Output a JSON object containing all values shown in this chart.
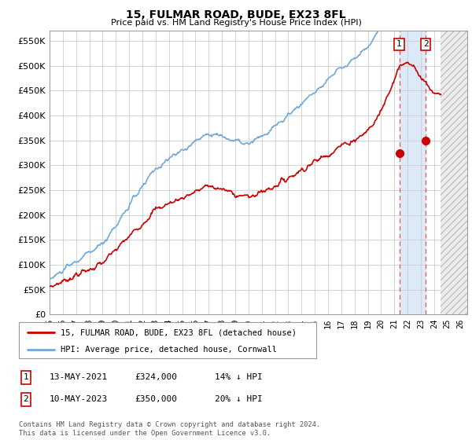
{
  "title": "15, FULMAR ROAD, BUDE, EX23 8FL",
  "subtitle": "Price paid vs. HM Land Registry's House Price Index (HPI)",
  "ylabel_values": [
    "£0",
    "£50K",
    "£100K",
    "£150K",
    "£200K",
    "£250K",
    "£300K",
    "£350K",
    "£400K",
    "£450K",
    "£500K",
    "£550K"
  ],
  "yticks": [
    0,
    50000,
    100000,
    150000,
    200000,
    250000,
    300000,
    350000,
    400000,
    450000,
    500000,
    550000
  ],
  "xlim_start": 1995.0,
  "xlim_end": 2026.5,
  "ylim": [
    0,
    570000
  ],
  "purchase1_date": 2021.37,
  "purchase1_price": 324000,
  "purchase1_label": "1",
  "purchase2_date": 2023.37,
  "purchase2_price": 350000,
  "purchase2_label": "2",
  "legend_line1": "15, FULMAR ROAD, BUDE, EX23 8FL (detached house)",
  "legend_line2": "HPI: Average price, detached house, Cornwall",
  "footer": "Contains HM Land Registry data © Crown copyright and database right 2024.\nThis data is licensed under the Open Government Licence v3.0.",
  "hpi_color": "#6fa8dc",
  "price_color": "#cc0000",
  "grid_color": "#cccccc",
  "background_color": "#ffffff",
  "highlight_bg": "#dce9f7",
  "dashed_line_color": "#e06060",
  "future_start": 2024.5,
  "ann_dates": [
    "13-MAY-2021",
    "10-MAY-2023"
  ],
  "ann_prices": [
    "£324,000",
    "£350,000"
  ],
  "ann_pcts": [
    "14% ↓ HPI",
    "20% ↓ HPI"
  ]
}
